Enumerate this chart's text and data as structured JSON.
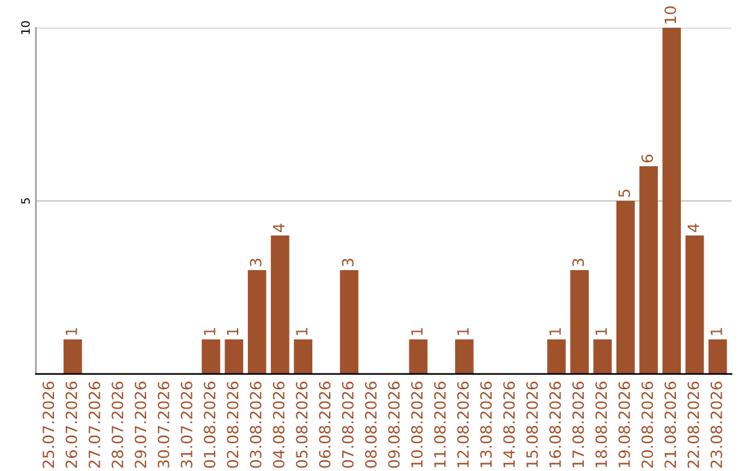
{
  "chart_data": {
    "type": "bar",
    "categories": [
      "25.07.2026",
      "26.07.2026",
      "27.07.2026",
      "28.07.2026",
      "29.07.2026",
      "30.07.2026",
      "31.07.2026",
      "01.08.2026",
      "02.08.2026",
      "03.08.2026",
      "04.08.2026",
      "05.08.2026",
      "06.08.2026",
      "07.08.2026",
      "08.08.2026",
      "09.08.2026",
      "10.08.2026",
      "11.08.2026",
      "12.08.2026",
      "13.08.2026",
      "14.08.2026",
      "15.08.2026",
      "16.08.2026",
      "17.08.2026",
      "18.08.2026",
      "19.08.2026",
      "20.08.2026",
      "21.08.2026",
      "22.08.2026",
      "23.08.2026"
    ],
    "values": [
      0,
      1,
      0,
      0,
      0,
      0,
      0,
      1,
      1,
      3,
      4,
      1,
      0,
      3,
      0,
      0,
      1,
      0,
      1,
      0,
      0,
      0,
      1,
      3,
      1,
      5,
      6,
      10,
      4,
      1
    ],
    "value_labels": [
      null,
      "1",
      null,
      null,
      null,
      null,
      null,
      "1",
      "1",
      "3",
      "4",
      "1",
      null,
      "3",
      null,
      null,
      "1",
      null,
      "1",
      null,
      null,
      null,
      "1",
      "3",
      "1",
      "5",
      "6",
      "10",
      "4",
      "1"
    ],
    "color": "#a0522d",
    "ylim": [
      0,
      10
    ],
    "yticks": [
      5,
      10
    ],
    "grid": "y"
  }
}
